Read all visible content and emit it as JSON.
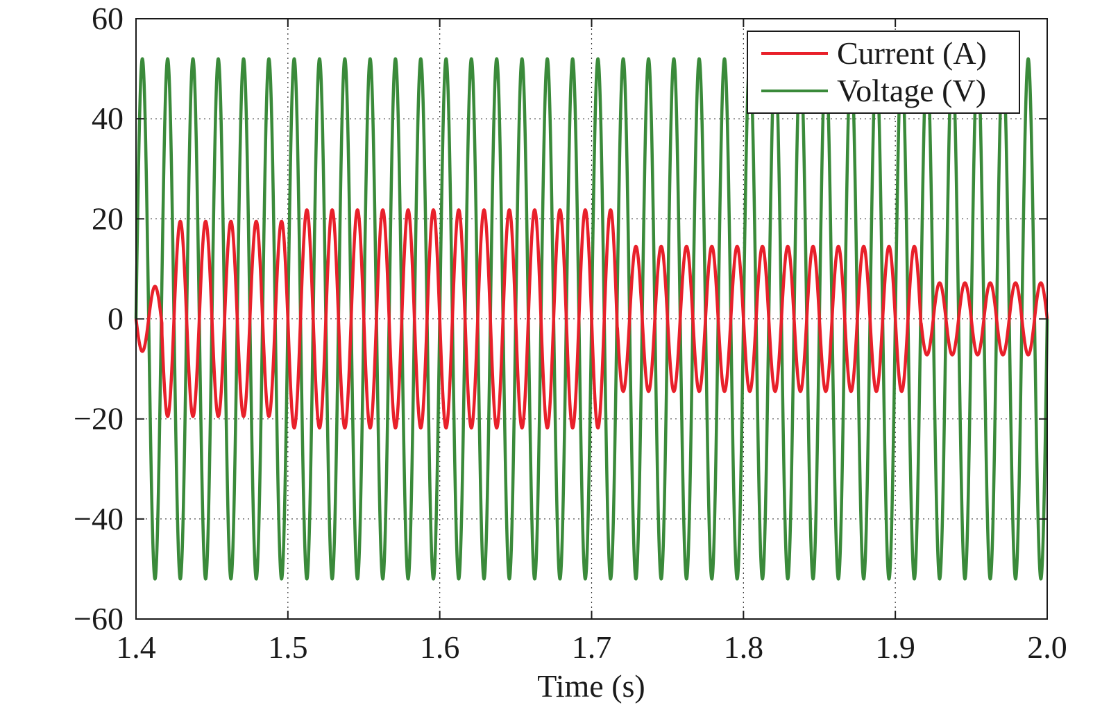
{
  "chart_data": {
    "type": "line",
    "xlabel": "Time (s)",
    "ylabel": "",
    "xlim": [
      1.4,
      2.0
    ],
    "ylim": [
      -60,
      60
    ],
    "xticks": [
      1.4,
      1.5,
      1.6,
      1.7,
      1.8,
      1.9,
      2.0
    ],
    "xtick_labels": [
      "1.4",
      "1.5",
      "1.6",
      "1.7",
      "1.8",
      "1.9",
      "2.0"
    ],
    "yticks": [
      60,
      40,
      20,
      0,
      -20,
      -40,
      -60
    ],
    "ytick_labels": [
      "60",
      "40",
      "20",
      "0",
      "−20",
      "−40",
      "−60"
    ],
    "grid": true,
    "legend_position": "top-right",
    "frequency_hz": 60,
    "series": [
      {
        "name": "Current (A)",
        "color": "#e8202a",
        "waveform": "sine",
        "phase": "inverted",
        "amplitude_segments": [
          {
            "t_start": 1.4,
            "t_end": 1.417,
            "amplitude": 6.5
          },
          {
            "t_start": 1.417,
            "t_end": 1.5,
            "amplitude": 19.5
          },
          {
            "t_start": 1.5,
            "t_end": 1.717,
            "amplitude": 21.8
          },
          {
            "t_start": 1.717,
            "t_end": 1.917,
            "amplitude": 14.5
          },
          {
            "t_start": 1.917,
            "t_end": 2.0,
            "amplitude": 7.2
          }
        ]
      },
      {
        "name": "Voltage (V)",
        "color": "#3a8a3a",
        "waveform": "sine",
        "phase": "normal",
        "amplitude_segments": [
          {
            "t_start": 1.4,
            "t_end": 2.0,
            "amplitude": 52
          }
        ]
      }
    ]
  }
}
